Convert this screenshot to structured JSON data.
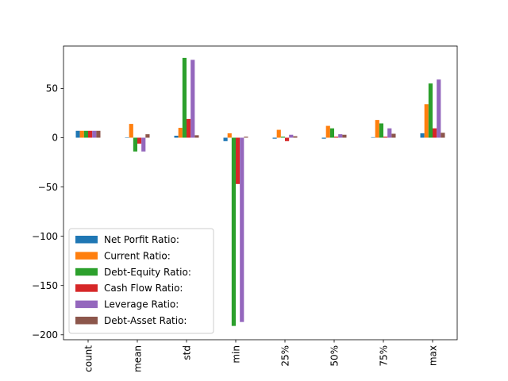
{
  "chart_data": {
    "type": "bar",
    "title": "",
    "xlabel": "",
    "ylabel": "",
    "ylim": [
      -205,
      93
    ],
    "yticks": [
      -200,
      -150,
      -100,
      -50,
      0,
      50
    ],
    "ytick_labels": [
      "−200",
      "−150",
      "−100",
      "−50",
      "0",
      "50"
    ],
    "categories": [
      "count",
      "mean",
      "std",
      "min",
      "25%",
      "50%",
      "75%",
      "max"
    ],
    "legend_position": "lower-left",
    "grid": false,
    "series": [
      {
        "name": "Net Porfit Ratio:",
        "color": "#1f77b4",
        "values": [
          7,
          0.3,
          2,
          -3.5,
          -1,
          -1,
          0.5,
          4.5
        ]
      },
      {
        "name": "Current Ratio:",
        "color": "#ff7f0e",
        "values": [
          7,
          14,
          10,
          4.5,
          8,
          12,
          18,
          34
        ]
      },
      {
        "name": "Debt-Equity Ratio:",
        "color": "#2ca02c",
        "values": [
          7,
          -14,
          81,
          -191,
          1,
          9.5,
          14.5,
          55
        ]
      },
      {
        "name": "Cash Flow Ratio:",
        "color": "#d62728",
        "values": [
          7,
          -6,
          19,
          -47,
          -3.5,
          1,
          1,
          9.5
        ]
      },
      {
        "name": "Leverage Ratio:",
        "color": "#9467bd",
        "values": [
          7,
          -14,
          79,
          -187,
          3,
          3.5,
          9.5,
          59
        ]
      },
      {
        "name": "Debt-Asset Ratio:",
        "color": "#8c564b",
        "values": [
          7,
          3.5,
          2.5,
          1,
          1.5,
          3,
          4,
          5
        ]
      }
    ]
  }
}
